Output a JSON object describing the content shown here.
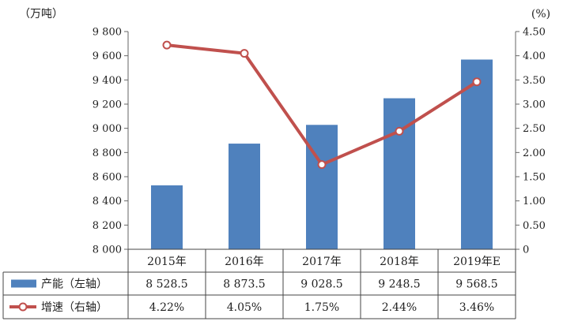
{
  "chart_data": {
    "type": "bar",
    "categories": [
      "2015年",
      "2016年",
      "2017年",
      "2018年",
      "2019年E"
    ],
    "y_left": {
      "unit_label": "（万吨）",
      "ylim": [
        8000,
        9800
      ],
      "ticks": [
        8000,
        8200,
        8400,
        8600,
        8800,
        9000,
        9200,
        9400,
        9600,
        9800
      ],
      "tick_labels": [
        "8 000",
        "8 200",
        "8 400",
        "8 600",
        "8 800",
        "9 000",
        "9 200",
        "9 400",
        "9 600",
        "9 800"
      ]
    },
    "y_right": {
      "unit_label": "(%)",
      "ylim": [
        0,
        4.5
      ],
      "ticks": [
        0,
        0.5,
        1,
        1.5,
        2,
        2.5,
        3,
        3.5,
        4,
        4.5
      ],
      "tick_labels": [
        "0",
        "0.50",
        "1.00",
        "1.50",
        "2.00",
        "2.50",
        "3.00",
        "3.50",
        "4.00",
        "4.50"
      ]
    },
    "series": [
      {
        "name": "产能（左轴）",
        "type": "bar",
        "axis": "left",
        "color": "#4f81bd",
        "values": [
          8528.5,
          8873.5,
          9028.5,
          9248.5,
          9568.5
        ],
        "value_labels": [
          "8 528.5",
          "8 873.5",
          "9 028.5",
          "9 248.5",
          "9 568.5"
        ]
      },
      {
        "name": "增速（右轴）",
        "type": "line",
        "axis": "right",
        "color": "#c0504d",
        "values": [
          4.22,
          4.05,
          1.75,
          2.44,
          3.46
        ],
        "value_labels": [
          "4.22%",
          "4.05%",
          "1.75%",
          "2.44%",
          "3.46%"
        ]
      }
    ],
    "grid": false,
    "legend": "data-table-bottom"
  }
}
